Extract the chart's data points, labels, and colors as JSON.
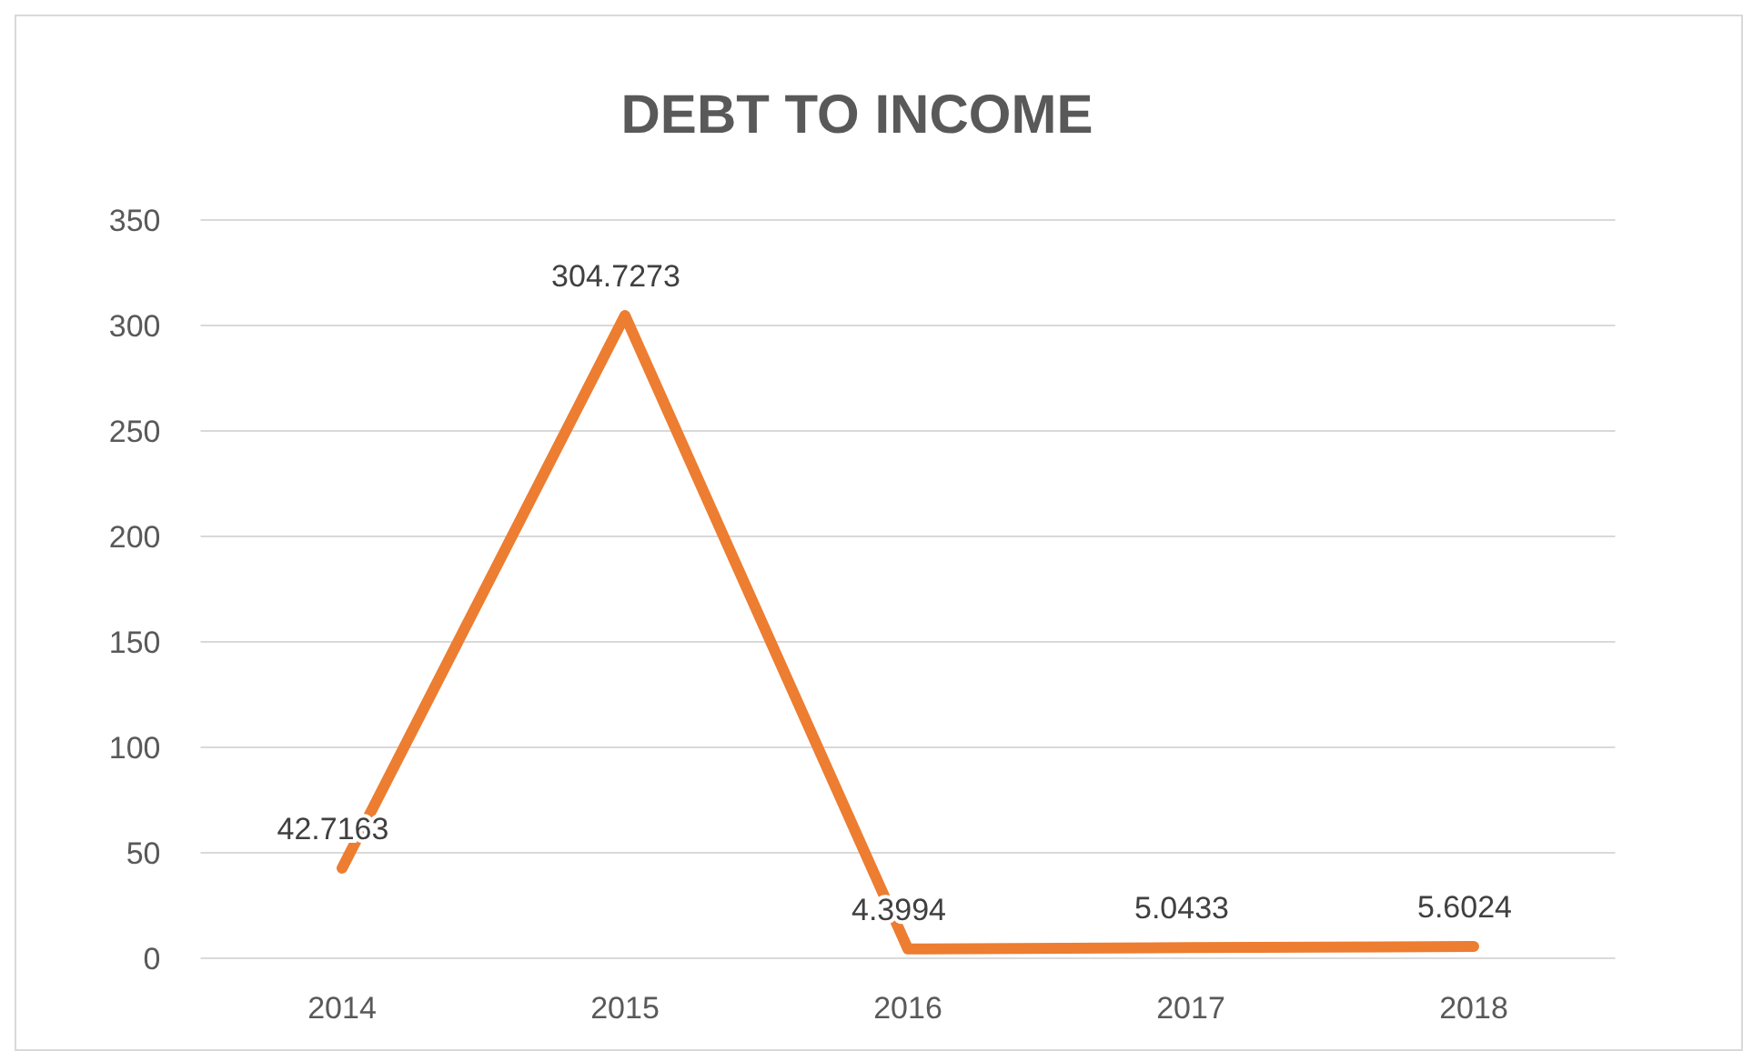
{
  "chart_data": {
    "type": "line",
    "title": "DEBT TO INCOME",
    "categories": [
      "2014",
      "2015",
      "2016",
      "2017",
      "2018"
    ],
    "series": [
      {
        "color": "#ed7d31",
        "values": [
          42.7163,
          304.7273,
          4.3994,
          5.0433,
          5.6024
        ]
      }
    ],
    "ylim": [
      0,
      350
    ],
    "yticks": [
      0,
      50,
      100,
      150,
      200,
      250,
      300,
      350
    ],
    "grid": "y",
    "data_labels": true
  }
}
